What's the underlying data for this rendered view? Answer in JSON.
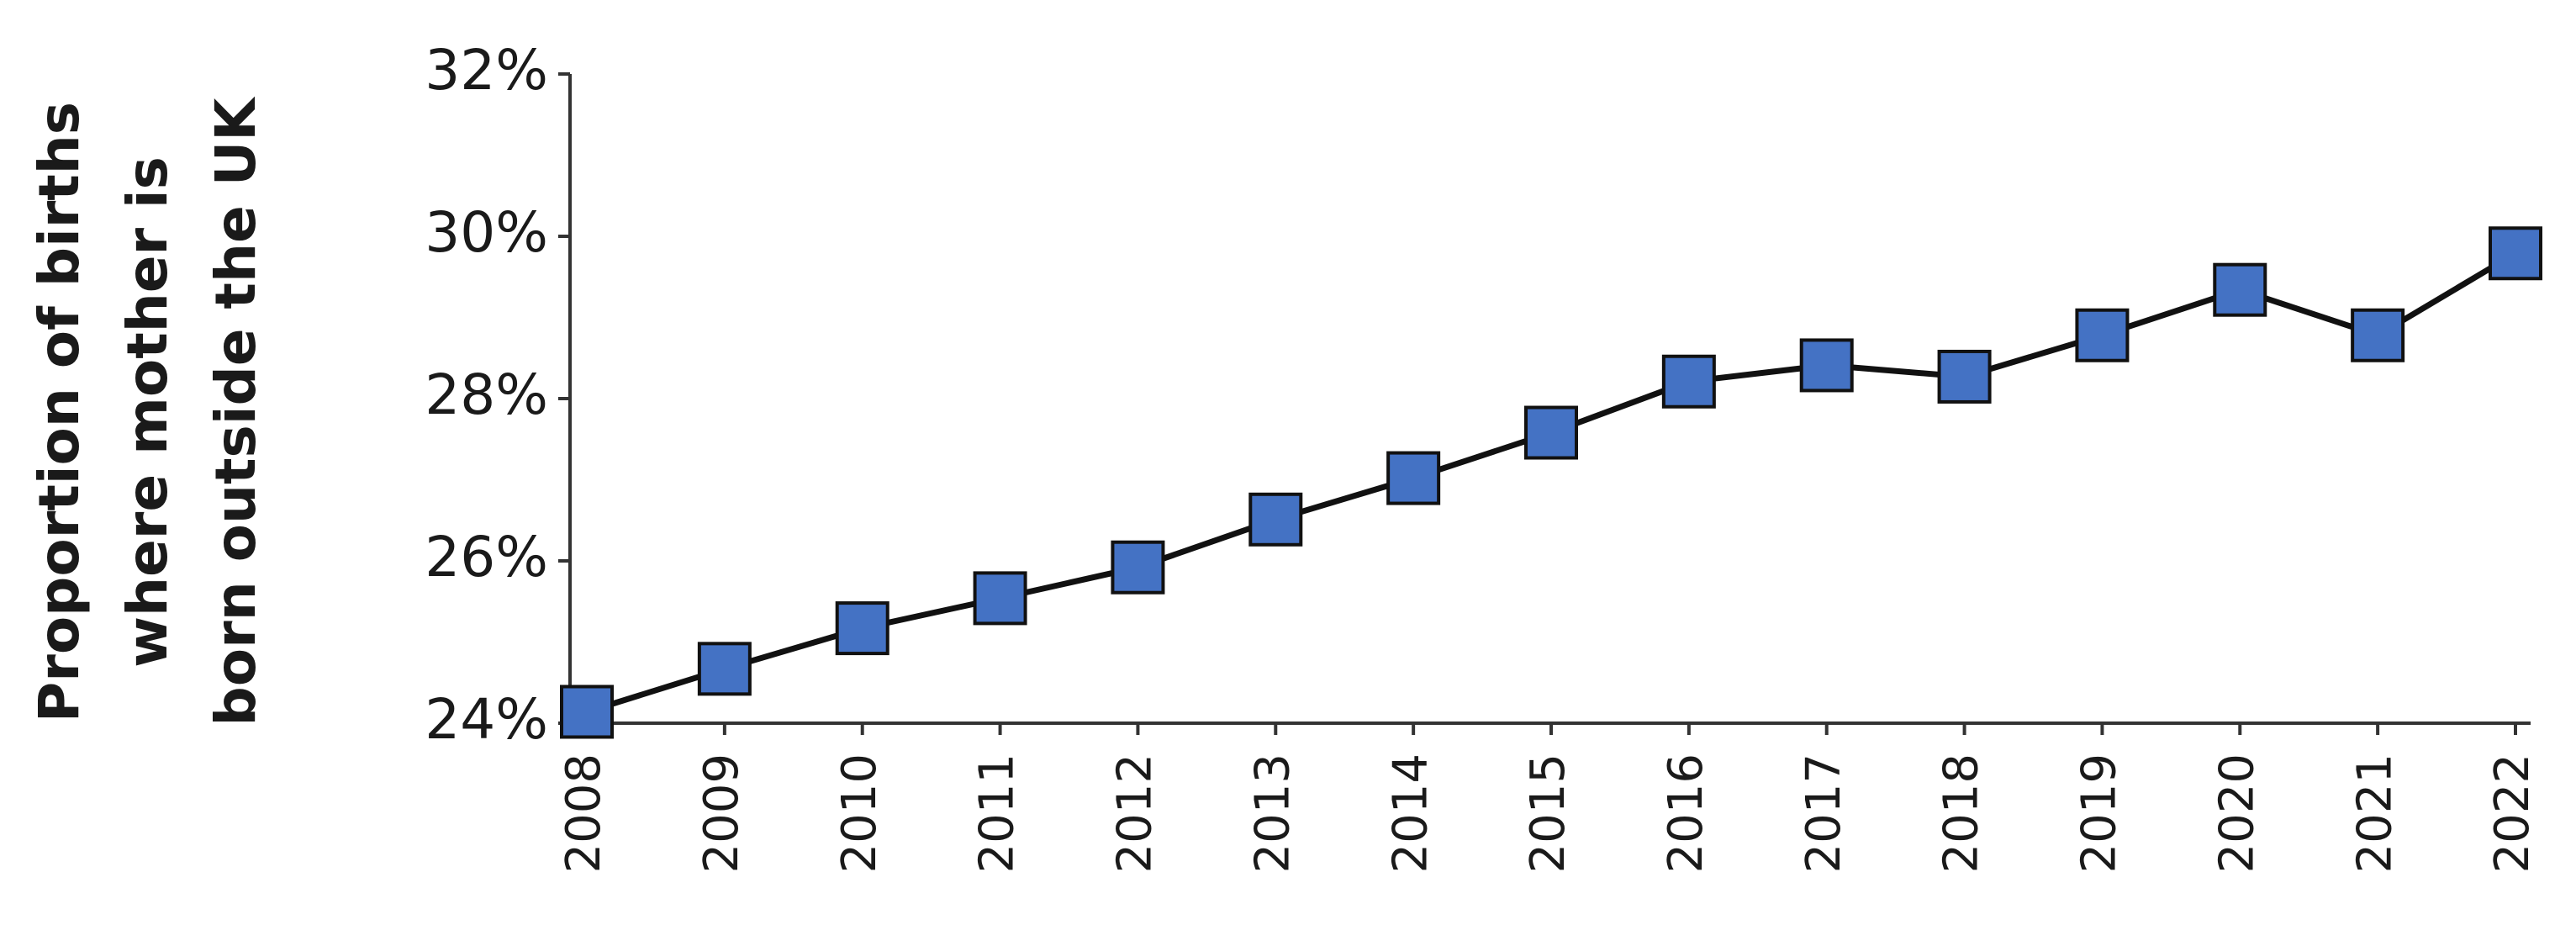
{
  "chart_data": {
    "type": "line",
    "y_label": [
      "Proportion of births",
      "where mother is",
      "born outside the UK"
    ],
    "categories": [
      "2008",
      "2009",
      "2010",
      "2011",
      "2012",
      "2013",
      "2014",
      "2015",
      "2016",
      "2017",
      "2018",
      "2019",
      "2020",
      "2021",
      "2022"
    ],
    "values": [
      24.14,
      24.67,
      25.17,
      25.54,
      25.92,
      26.51,
      27.02,
      27.58,
      28.21,
      28.41,
      28.27,
      28.78,
      29.34,
      28.78,
      29.79
    ],
    "color": "#4472c4",
    "ylim": [
      24,
      32
    ],
    "yticks": [
      {
        "value": 24,
        "label": "24%"
      },
      {
        "value": 26,
        "label": "26%"
      },
      {
        "value": 28,
        "label": "28%"
      },
      {
        "value": 30,
        "label": "30%"
      },
      {
        "value": 32,
        "label": "32%"
      }
    ],
    "grid": false
  }
}
